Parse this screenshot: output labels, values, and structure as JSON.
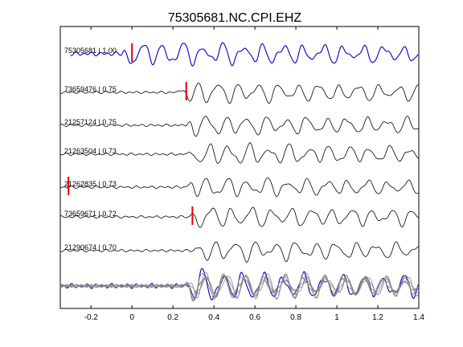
{
  "chart_data": {
    "type": "line",
    "title": "75305681.NC.CPI.EHZ",
    "xlabel": "",
    "ylabel": "",
    "xlim": [
      -0.35,
      1.4
    ],
    "xticks": [
      -0.2,
      0,
      0.2,
      0.4,
      0.6,
      0.8,
      1,
      1.2,
      1.4
    ],
    "xtick_labels": [
      "-0.2",
      "0",
      "0.2",
      "0.4",
      "0.6",
      "0.8",
      "1",
      "1.2",
      "1.4"
    ],
    "grid": false,
    "master_color": "#0000cc",
    "trace_color": "#000000",
    "stack_color": "#888888",
    "pick_color": "#e00000",
    "traces": [
      {
        "label": "75305681 | 1.00",
        "is_master": true,
        "pick": 0.0,
        "onset": -0.05,
        "amp": 1.0
      },
      {
        "label": "73659476 | 0.75",
        "is_master": false,
        "pick": 0.265,
        "onset": 0.22,
        "amp": 0.9
      },
      {
        "label": "21257124 | 0.75",
        "is_master": false,
        "pick": null,
        "onset": 0.26,
        "amp": 0.85
      },
      {
        "label": "21263504 | 0.73",
        "is_master": false,
        "pick": null,
        "onset": 0.27,
        "amp": 0.9
      },
      {
        "label": "21262835 | 0.73",
        "is_master": false,
        "pick": -0.31,
        "onset": 0.26,
        "amp": 0.8
      },
      {
        "label": "73659671 | 0.72",
        "is_master": false,
        "pick": 0.295,
        "onset": 0.28,
        "amp": 0.9
      },
      {
        "label": "21290674 | 0.70",
        "is_master": false,
        "pick": null,
        "onset": 0.3,
        "amp": 0.85
      }
    ]
  }
}
